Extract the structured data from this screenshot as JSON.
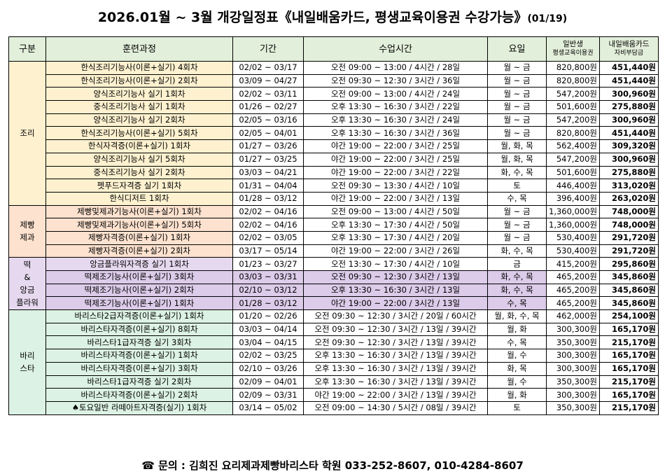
{
  "header": {
    "title": "2026.01월 ~ 3월 개강일정표《내일배움카드, 평생교육이용권 수강가능》",
    "date": "(01/19)"
  },
  "table": {
    "headers": [
      [
        "구분"
      ],
      [
        "훈련과정"
      ],
      [
        "기간"
      ],
      [
        "수업시간"
      ],
      [
        "요일"
      ],
      [
        "일반생",
        "평생교육이용권"
      ],
      [
        "내일배움카드",
        "자비부담금"
      ]
    ],
    "groups": [
      {
        "label_lines": [
          "조리"
        ],
        "rows": [
          [
            "한식조리기능사(이론+실기) 4회차",
            "02/02 ~ 03/17",
            "오전 09:00 ~ 13:00 / 4시간 / 28일",
            "월 ~ 금",
            "820,800원",
            "451,440원"
          ],
          [
            "한식조리기능사(이론+실기) 2회차",
            "03/09 ~ 04/27",
            "오전 09:30 ~ 12:30 / 3시간 / 36일",
            "월 ~ 금",
            "820,800원",
            "451,440원"
          ],
          [
            "양식조리기능사 실기 1회차",
            "02/02 ~ 03/11",
            "오전 09:00 ~ 13:00 / 4시간 / 24일",
            "월 ~ 금",
            "547,200원",
            "300,960원"
          ],
          [
            "중식조리기능사 실기 1회차",
            "01/26 ~ 02/27",
            "오후 13:30 ~ 16:30 / 3시간 / 22일",
            "월 ~ 금",
            "501,600원",
            "275,880원"
          ],
          [
            "양식조리기능사 실기 2회차",
            "02/05 ~ 03/16",
            "오후 13:30 ~ 16:30 / 3시간 / 24일",
            "월 ~ 금",
            "547,200원",
            "300,960원"
          ],
          [
            "한식조리기능사(이론+실기) 5회차",
            "02/05 ~ 04/01",
            "오후 13:30 ~ 16:30 / 3시간 / 36일",
            "월 ~ 금",
            "820,800원",
            "451,440원"
          ],
          [
            "한식자격증(이론+실기) 1회차",
            "01/27 ~ 03/26",
            "야간 19:00 ~ 22:00 / 3시간 / 25일",
            "월, 화, 목",
            "562,400원",
            "309,320원"
          ],
          [
            "양식조리기능사 실기 5회차",
            "01/27 ~ 03/25",
            "야간 19:00 ~ 22:00 / 3시간 / 25일",
            "월, 화, 목",
            "547,200원",
            "300,960원"
          ],
          [
            "중식조리기능사 실기 2회차",
            "03/03 ~ 04/21",
            "야간 19:00 ~ 22:00 / 3시간 / 22일",
            "화, 수, 목",
            "501,600원",
            "275,880원"
          ],
          [
            "펫푸드자격증 실기 1회차",
            "01/31 ~ 04/04",
            "오전 09:30 ~ 13:30 / 4시간 / 10일",
            "토",
            "446,400원",
            "313,020원"
          ],
          [
            "한식디저트 1회차",
            "01/28 ~ 03/12",
            "야간 19:00 ~ 22:00 / 3시간 / 13일",
            "수, 목",
            "396,400원",
            "263,020원"
          ]
        ]
      },
      {
        "label_lines": [
          "제빵",
          "제과"
        ],
        "rows": [
          [
            "제빵및제과기능사(이론+실기) 1회차",
            "02/02 ~ 04/16",
            "오전 09:00 ~ 13:00 / 4시간 / 50일",
            "월 ~ 금",
            "1,360,000원",
            "748,000원"
          ],
          [
            "제빵및제과기능사(이론+실기) 5회차",
            "02/02 ~ 04/16",
            "오후 13:30 ~ 17:30 / 4시간 / 50일",
            "월 ~ 금",
            "1,360,000원",
            "748,000원"
          ],
          [
            "제빵자격증(이론+실기) 1회차",
            "02/02 ~ 03/05",
            "오후 13:30 ~ 17:30 / 4시간 / 20일",
            "월 ~ 금",
            "530,400원",
            "291,720원"
          ],
          [
            "제빵자격증(이론+실기) 2회차",
            "03/17 ~ 05/14",
            "야간 19:00 ~ 22:00 / 3시간 / 26일",
            "화, 수, 목",
            "530,400원",
            "291,720원"
          ]
        ]
      },
      {
        "label_lines": [
          "떡",
          "&",
          "앙금",
          "플라워"
        ],
        "rows": [
          [
            "앙금플라워자격증 실기 1회차",
            "01/23 ~ 03/27",
            "오전 13:30 ~ 17:30 / 4시간 / 10일",
            "금",
            "415,200원",
            "295,860원"
          ],
          [
            "떡제조기능사(이론+실기) 3회차",
            "03/03 ~ 03/31",
            "오전 09:30 ~ 12:30 / 3시간 / 13일",
            "화, 수, 목",
            "465,200원",
            "345,860원"
          ],
          [
            "떡제조기능사(이론+실기) 2회차",
            "02/10 ~ 03/12",
            "오후 13:30 ~ 16:30 / 3시간 / 13일",
            "화, 수, 목",
            "465,200원",
            "345,860원"
          ],
          [
            "떡제조기능사(이론+실기) 1회차",
            "01/28 ~ 03/12",
            "야간 19:00 ~ 22:00 / 3시간 / 13일",
            "수, 목",
            "465,200원",
            "345,860원"
          ]
        ]
      },
      {
        "label_lines": [
          "바리",
          "스타"
        ],
        "rows": [
          [
            "바리스타2급자격증(이론+실기) 1회차",
            "01/20 ~ 02/26",
            "오전 09:30 ~ 12:30 / 3시간 / 20일 / 60시간",
            "월, 화, 수, 목",
            "462,000원",
            "254,100원"
          ],
          [
            "바리스타자격증(이론+실기) 8회차",
            "03/03 ~ 04/14",
            "오전 09:30 ~ 12:30 / 3시간 / 13일 / 39시간",
            "월, 화",
            "300,300원",
            "165,170원"
          ],
          [
            "바리스타1급자격증 실기 3회차",
            "03/04 ~ 04/15",
            "오전 09:30 ~ 12:30 / 3시간 / 13일 / 39시간",
            "수, 목",
            "350,300원",
            "215,170원"
          ],
          [
            "바리스타자격증(이론+실기) 1회차",
            "02/02 ~ 03/25",
            "오후 13:30 ~ 16:30 / 3시간 / 13일 / 39시간",
            "월, 수",
            "300,300원",
            "165,170원"
          ],
          [
            "바리스타자격증(이론+실기) 3회차",
            "02/10 ~ 03/26",
            "오후 13:30 ~ 16:30 / 3시간 / 13일 / 39시간",
            "화, 목",
            "300,300원",
            "165,170원"
          ],
          [
            "바리스타1급자격증 실기 2회차",
            "02/09 ~ 04/01",
            "오후 13:30 ~ 16:30 / 3시간 / 13일 / 39시간",
            "월, 수",
            "350,300원",
            "215,170원"
          ],
          [
            "바리스타자격증(이론+실기) 2회차",
            "02/09 ~ 03/31",
            "야간 19:00 ~ 22:00 / 3시간 / 13일 / 39시간",
            "월, 화",
            "300,300원",
            "165,170원"
          ],
          [
            "♠토요일반 라떼아트자격증(실기) 1회차",
            "03/14 ~ 05/02",
            "오전 09:00 ~ 14:30 / 5시간 / 08일 / 39시간",
            "토",
            "350,300원",
            "215,170원"
          ]
        ]
      }
    ]
  },
  "footer": {
    "contact": "☎ 문의 : 김희진 요리제과제빵바리스타 학원 033-252-8607, 010-4284-8607"
  }
}
